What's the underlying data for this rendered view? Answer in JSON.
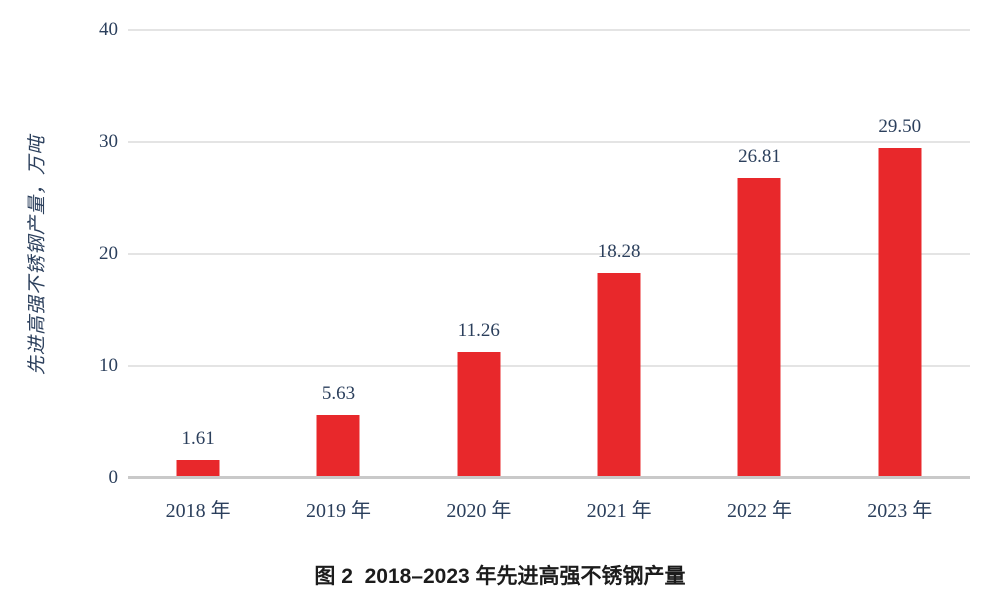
{
  "figure": {
    "caption": "图 2  2018–2023 年先进高强不锈钢产量"
  },
  "chart_data": {
    "type": "bar",
    "title": "",
    "categories": [
      "2018 年",
      "2019 年",
      "2020 年",
      "2021 年",
      "2022 年",
      "2023 年"
    ],
    "values": [
      1.61,
      5.63,
      11.26,
      18.28,
      26.81,
      29.5
    ],
    "value_labels": [
      "1.61",
      "5.63",
      "11.26",
      "18.28",
      "26.81",
      "29.50"
    ],
    "xlabel": "",
    "ylabel": "先进高强不锈钢产量，万吨",
    "ylim": [
      0,
      40
    ],
    "y_ticks": [
      0,
      10,
      20,
      30,
      40
    ],
    "grid": true,
    "legend_position": "none",
    "colors": {
      "bar": "#e8282b",
      "text": "#2b3f5c",
      "gridline": "#e4e4e4",
      "axis_line": "#c9c9c9"
    }
  }
}
